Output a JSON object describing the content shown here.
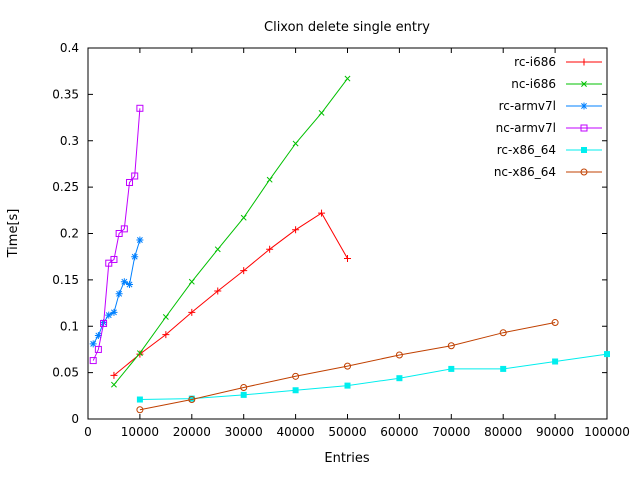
{
  "chart_data": {
    "type": "line",
    "title": "Clixon delete single entry",
    "xlabel": "Entries",
    "ylabel": "Time[s]",
    "xlim": [
      0,
      100000
    ],
    "ylim": [
      0,
      0.4
    ],
    "grid": false,
    "legend_position": "top-right-inside",
    "xticks": [
      0,
      10000,
      20000,
      30000,
      40000,
      50000,
      60000,
      70000,
      80000,
      90000,
      100000
    ],
    "xtick_labels": [
      "0",
      "10000",
      "20000",
      "30000",
      "40000",
      "50000",
      "60000",
      "70000",
      "80000",
      "90000",
      "100000"
    ],
    "yticks": [
      0,
      0.05,
      0.1,
      0.15,
      0.2,
      0.25,
      0.3,
      0.35,
      0.4
    ],
    "ytick_labels": [
      "0",
      "0.05",
      "0.1",
      "0.15",
      "0.2",
      "0.25",
      "0.3",
      "0.35",
      "0.4"
    ],
    "series": [
      {
        "name": "rc-i686",
        "color": "#ff0000",
        "marker": "plus",
        "points": [
          [
            5000,
            0.047
          ],
          [
            10000,
            0.07
          ],
          [
            15000,
            0.091
          ],
          [
            20000,
            0.115
          ],
          [
            25000,
            0.138
          ],
          [
            30000,
            0.16
          ],
          [
            35000,
            0.183
          ],
          [
            40000,
            0.204
          ],
          [
            45000,
            0.222
          ],
          [
            50000,
            0.173
          ]
        ]
      },
      {
        "name": "nc-i686",
        "color": "#00c000",
        "marker": "cross",
        "points": [
          [
            5000,
            0.037
          ],
          [
            10000,
            0.071
          ],
          [
            15000,
            0.11
          ],
          [
            20000,
            0.148
          ],
          [
            25000,
            0.183
          ],
          [
            30000,
            0.217
          ],
          [
            35000,
            0.258
          ],
          [
            40000,
            0.297
          ],
          [
            45000,
            0.33
          ],
          [
            50000,
            0.367
          ]
        ]
      },
      {
        "name": "rc-armv7l",
        "color": "#0080ff",
        "marker": "asterisk",
        "points": [
          [
            1000,
            0.081
          ],
          [
            2000,
            0.09
          ],
          [
            3000,
            0.104
          ],
          [
            4000,
            0.112
          ],
          [
            5000,
            0.115
          ],
          [
            6000,
            0.135
          ],
          [
            7000,
            0.148
          ],
          [
            8000,
            0.145
          ],
          [
            9000,
            0.175
          ],
          [
            10000,
            0.193
          ]
        ]
      },
      {
        "name": "nc-armv7l",
        "color": "#c000ff",
        "marker": "square-open",
        "points": [
          [
            1000,
            0.063
          ],
          [
            2000,
            0.075
          ],
          [
            3000,
            0.103
          ],
          [
            4000,
            0.168
          ],
          [
            5000,
            0.172
          ],
          [
            6000,
            0.2
          ],
          [
            7000,
            0.205
          ],
          [
            8000,
            0.255
          ],
          [
            9000,
            0.262
          ],
          [
            10000,
            0.335
          ]
        ]
      },
      {
        "name": "rc-x86_64",
        "color": "#00eeee",
        "marker": "square-filled",
        "points": [
          [
            10000,
            0.021
          ],
          [
            20000,
            0.022
          ],
          [
            30000,
            0.026
          ],
          [
            40000,
            0.031
          ],
          [
            50000,
            0.036
          ],
          [
            60000,
            0.044
          ],
          [
            70000,
            0.054
          ],
          [
            80000,
            0.054
          ],
          [
            90000,
            0.062
          ],
          [
            100000,
            0.07
          ]
        ]
      },
      {
        "name": "nc-x86_64",
        "color": "#c04000",
        "marker": "circle-open",
        "points": [
          [
            10000,
            0.01
          ],
          [
            20000,
            0.021
          ],
          [
            30000,
            0.034
          ],
          [
            40000,
            0.046
          ],
          [
            50000,
            0.057
          ],
          [
            60000,
            0.069
          ],
          [
            70000,
            0.079
          ],
          [
            80000,
            0.093
          ],
          [
            90000,
            0.104
          ]
        ]
      }
    ]
  }
}
